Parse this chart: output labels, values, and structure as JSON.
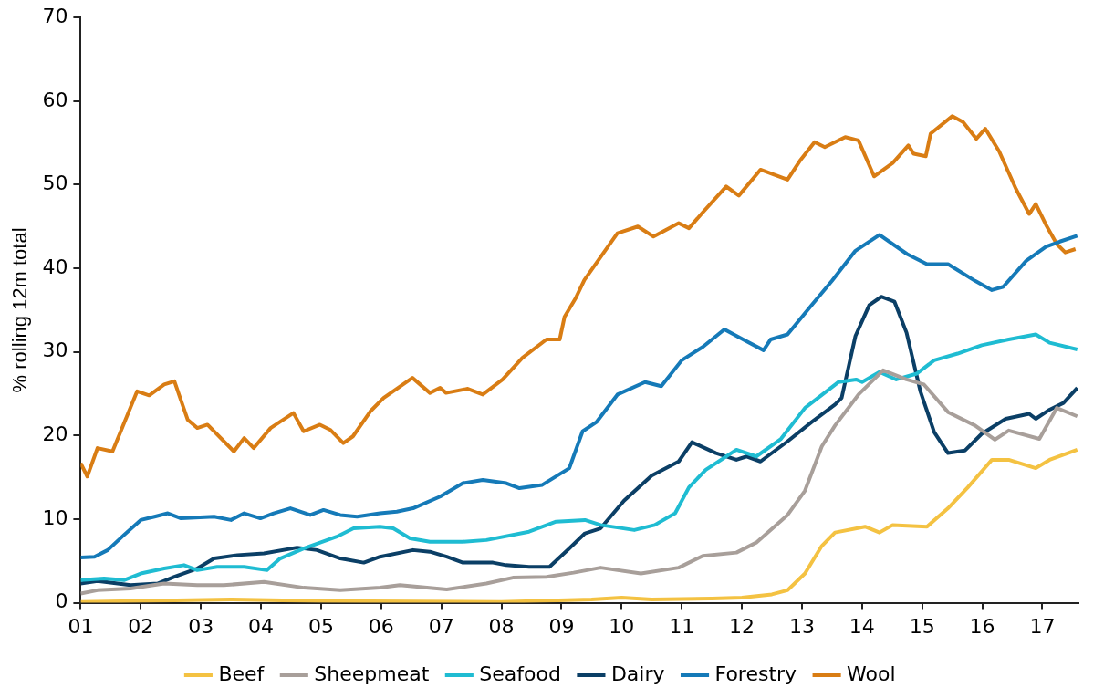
{
  "chart_data": {
    "type": "line",
    "ylabel": "% rolling 12m total",
    "xlim": [
      1,
      17.6
    ],
    "ylim": [
      0,
      70
    ],
    "xticks": [
      {
        "value": 1,
        "label": "01"
      },
      {
        "value": 2,
        "label": "02"
      },
      {
        "value": 3,
        "label": "03"
      },
      {
        "value": 4,
        "label": "04"
      },
      {
        "value": 5,
        "label": "05"
      },
      {
        "value": 6,
        "label": "06"
      },
      {
        "value": 7,
        "label": "07"
      },
      {
        "value": 8,
        "label": "08"
      },
      {
        "value": 9,
        "label": "09"
      },
      {
        "value": 10,
        "label": "10"
      },
      {
        "value": 11,
        "label": "11"
      },
      {
        "value": 12,
        "label": "12"
      },
      {
        "value": 13,
        "label": "13"
      },
      {
        "value": 14,
        "label": "14"
      },
      {
        "value": 15,
        "label": "15"
      },
      {
        "value": 16,
        "label": "16"
      },
      {
        "value": 17,
        "label": "17"
      }
    ],
    "yticks": [
      0,
      10,
      20,
      30,
      40,
      50,
      60,
      70
    ],
    "grid": false,
    "legend": "bottom",
    "series": [
      {
        "name": "Beef",
        "color": "#f4c242",
        "x": [
          1.0,
          3.5,
          5.0,
          8.0,
          9.5,
          10.0,
          10.5,
          11.5,
          12.0,
          12.5,
          12.76,
          13.05,
          13.33,
          13.55,
          14.05,
          14.29,
          14.51,
          15.08,
          15.43,
          15.76,
          16.16,
          16.44,
          16.89,
          17.12,
          17.58
        ],
        "values": [
          0.1,
          0.4,
          0.2,
          0.1,
          0.4,
          0.6,
          0.4,
          0.5,
          0.6,
          1.0,
          1.5,
          3.5,
          6.8,
          8.4,
          9.1,
          8.4,
          9.3,
          9.1,
          11.3,
          13.8,
          17.1,
          17.1,
          16.1,
          17.1,
          18.3
        ]
      },
      {
        "name": "Sheepmeat",
        "color": "#a89f9a",
        "x": [
          1.0,
          1.28,
          1.83,
          2.39,
          2.94,
          3.38,
          4.05,
          4.71,
          5.32,
          5.98,
          6.31,
          7.09,
          7.75,
          8.19,
          8.75,
          9.2,
          9.65,
          10.32,
          10.95,
          11.35,
          11.91,
          12.24,
          12.76,
          13.05,
          13.33,
          13.55,
          13.94,
          14.35,
          14.74,
          15.03,
          15.43,
          15.88,
          16.21,
          16.44,
          16.95,
          17.24,
          17.58
        ],
        "values": [
          1.1,
          1.5,
          1.7,
          2.3,
          2.1,
          2.1,
          2.5,
          1.8,
          1.5,
          1.8,
          2.1,
          1.6,
          2.3,
          3.0,
          3.1,
          3.6,
          4.2,
          3.5,
          4.2,
          5.6,
          6.0,
          7.2,
          10.5,
          13.4,
          18.7,
          21.2,
          24.9,
          27.8,
          26.7,
          26.1,
          22.8,
          21.2,
          19.5,
          20.6,
          19.6,
          23.3,
          22.3
        ]
      },
      {
        "name": "Seafood",
        "color": "#1fbcd2",
        "x": [
          1.0,
          1.39,
          1.72,
          2.0,
          2.39,
          2.72,
          2.94,
          3.27,
          3.72,
          4.1,
          4.32,
          4.71,
          5.26,
          5.54,
          5.98,
          6.2,
          6.48,
          6.81,
          7.36,
          7.75,
          8.46,
          8.91,
          9.39,
          9.65,
          10.21,
          10.55,
          10.89,
          11.12,
          11.4,
          11.91,
          12.24,
          12.65,
          13.05,
          13.61,
          13.9,
          14.0,
          14.29,
          14.57,
          14.91,
          15.2,
          15.59,
          15.99,
          16.44,
          16.89,
          17.12,
          17.58
        ],
        "values": [
          2.7,
          2.9,
          2.7,
          3.5,
          4.1,
          4.5,
          3.9,
          4.3,
          4.3,
          3.9,
          5.3,
          6.5,
          7.9,
          8.9,
          9.1,
          8.9,
          7.7,
          7.3,
          7.3,
          7.5,
          8.5,
          9.7,
          9.9,
          9.3,
          8.7,
          9.3,
          10.7,
          13.8,
          15.9,
          18.3,
          17.5,
          19.6,
          23.3,
          26.4,
          26.7,
          26.4,
          27.6,
          26.7,
          27.4,
          29.0,
          29.8,
          30.8,
          31.5,
          32.1,
          31.1,
          30.3
        ]
      },
      {
        "name": "Dairy",
        "color": "#0b3f66",
        "x": [
          1.0,
          1.28,
          1.83,
          2.28,
          2.56,
          2.94,
          3.22,
          3.61,
          4.05,
          4.6,
          4.93,
          5.32,
          5.71,
          5.98,
          6.53,
          6.81,
          7.09,
          7.36,
          7.86,
          8.08,
          8.46,
          8.8,
          9.13,
          9.39,
          9.65,
          10.04,
          10.5,
          10.95,
          11.17,
          11.57,
          11.91,
          12.08,
          12.31,
          12.76,
          13.16,
          13.55,
          13.66,
          13.89,
          14.12,
          14.32,
          14.54,
          14.74,
          14.97,
          15.2,
          15.43,
          15.71,
          15.99,
          16.39,
          16.78,
          16.89,
          17.12,
          17.35,
          17.58
        ],
        "values": [
          2.3,
          2.6,
          2.1,
          2.3,
          3.1,
          4.1,
          5.3,
          5.7,
          5.9,
          6.6,
          6.3,
          5.3,
          4.8,
          5.5,
          6.3,
          6.1,
          5.5,
          4.8,
          4.8,
          4.5,
          4.3,
          4.3,
          6.5,
          8.3,
          8.9,
          12.2,
          15.2,
          16.9,
          19.2,
          17.9,
          17.1,
          17.5,
          16.9,
          19.3,
          21.6,
          23.7,
          24.5,
          31.9,
          35.6,
          36.6,
          36.0,
          32.3,
          25.3,
          20.4,
          17.9,
          18.2,
          20.2,
          22.0,
          22.6,
          22.0,
          23.1,
          23.9,
          25.7
        ]
      },
      {
        "name": "Forestry",
        "color": "#157ab8",
        "x": [
          1.0,
          1.23,
          1.45,
          1.72,
          2.0,
          2.23,
          2.45,
          2.67,
          3.22,
          3.5,
          3.72,
          3.99,
          4.21,
          4.49,
          4.82,
          5.04,
          5.32,
          5.6,
          5.98,
          6.26,
          6.53,
          6.98,
          7.36,
          7.69,
          8.08,
          8.3,
          8.68,
          9.13,
          9.35,
          9.58,
          9.93,
          10.39,
          10.66,
          11.0,
          11.35,
          11.71,
          12.02,
          12.36,
          12.48,
          12.76,
          13.16,
          13.5,
          13.89,
          14.29,
          14.75,
          15.08,
          15.43,
          15.88,
          16.16,
          16.35,
          16.73,
          17.06,
          17.29,
          17.58
        ],
        "values": [
          5.4,
          5.5,
          6.3,
          8.1,
          9.9,
          10.3,
          10.7,
          10.1,
          10.3,
          9.9,
          10.7,
          10.1,
          10.7,
          11.3,
          10.5,
          11.1,
          10.5,
          10.3,
          10.7,
          10.9,
          11.3,
          12.7,
          14.3,
          14.7,
          14.3,
          13.7,
          14.1,
          16.1,
          20.5,
          21.6,
          24.9,
          26.4,
          25.9,
          29.0,
          30.6,
          32.7,
          31.5,
          30.2,
          31.5,
          32.1,
          35.6,
          38.5,
          42.1,
          44.0,
          41.7,
          40.5,
          40.5,
          38.5,
          37.4,
          37.8,
          40.9,
          42.6,
          43.2,
          43.9
        ]
      },
      {
        "name": "Wool",
        "color": "#d97d14",
        "x": [
          1.0,
          1.11,
          1.28,
          1.53,
          1.94,
          2.14,
          2.39,
          2.56,
          2.78,
          2.94,
          3.11,
          3.55,
          3.72,
          3.88,
          4.16,
          4.54,
          4.71,
          4.98,
          5.15,
          5.37,
          5.53,
          5.82,
          6.04,
          6.52,
          6.81,
          6.98,
          7.08,
          7.44,
          7.69,
          8.02,
          8.35,
          8.75,
          8.97,
          9.05,
          9.24,
          9.38,
          9.93,
          10.27,
          10.53,
          10.95,
          11.12,
          11.35,
          11.74,
          11.95,
          12.31,
          12.76,
          12.98,
          13.21,
          13.38,
          13.72,
          13.94,
          14.2,
          14.51,
          14.77,
          14.86,
          15.06,
          15.14,
          15.5,
          15.68,
          15.9,
          16.05,
          16.28,
          16.56,
          16.78,
          16.89,
          17.06,
          17.24,
          17.38,
          17.55
        ],
        "values": [
          16.7,
          15.1,
          18.5,
          18.1,
          25.3,
          24.8,
          26.1,
          26.5,
          21.9,
          20.9,
          21.3,
          18.1,
          19.7,
          18.5,
          20.9,
          22.7,
          20.5,
          21.3,
          20.7,
          19.1,
          19.9,
          22.9,
          24.5,
          26.9,
          25.1,
          25.7,
          25.1,
          25.6,
          24.9,
          26.7,
          29.3,
          31.5,
          31.5,
          34.2,
          36.5,
          38.6,
          44.2,
          45.0,
          43.8,
          45.4,
          44.8,
          46.7,
          49.8,
          48.7,
          51.8,
          50.6,
          53.0,
          55.1,
          54.5,
          55.7,
          55.3,
          51.0,
          52.6,
          54.7,
          53.7,
          53.4,
          56.1,
          58.2,
          57.5,
          55.5,
          56.7,
          54.0,
          49.5,
          46.5,
          47.7,
          45.2,
          42.9,
          41.9,
          42.3
        ]
      }
    ]
  }
}
